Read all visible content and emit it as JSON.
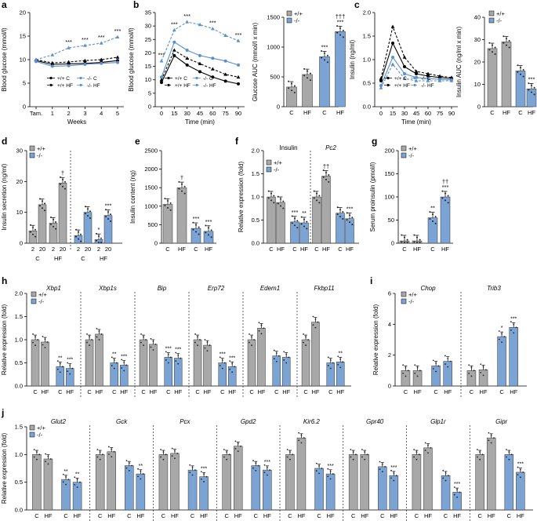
{
  "colors": {
    "gray": "#A8A8A8",
    "blue": "#7BA3D4",
    "line": "#000000",
    "blueLine": "#5B8FCC",
    "hfBlue": "#9DB9E0"
  },
  "legend": {
    "wt": "+/+",
    "ko": "-/-"
  },
  "chart_data": [
    {
      "id": "a",
      "type": "line",
      "title": "",
      "xlabel": "Weeks",
      "ylabel": "Blood glucose (mmol/l)",
      "categories": [
        "Tam.",
        "1",
        "2",
        "3",
        "4",
        "5"
      ],
      "ylim": [
        0,
        20
      ],
      "yticks": [
        "0",
        "5",
        "10",
        "15",
        "20"
      ],
      "legend": [
        "+/+ C",
        "+/+ HF",
        "-/- C",
        "-/- HF"
      ],
      "series": [
        {
          "name": "+/+ C",
          "values": [
            9.8,
            9,
            9.1,
            9.2,
            9.4,
            9.8
          ]
        },
        {
          "name": "+/+ HF",
          "values": [
            10,
            9.3,
            9.5,
            9.8,
            10,
            10.5
          ]
        },
        {
          "name": "-/- C",
          "values": [
            9.6,
            8.6,
            8.7,
            9,
            9.2,
            9.4
          ]
        },
        {
          "name": "-/- HF",
          "values": [
            10,
            11,
            12.5,
            13,
            13.5,
            14.8
          ]
        }
      ],
      "stars": [
        "",
        "",
        "***",
        "***",
        "***",
        "***"
      ]
    },
    {
      "id": "b1",
      "type": "line",
      "xlabel": "Time (min)",
      "ylabel": "Blood glucose (mmol/l)",
      "categories": [
        "0",
        "15",
        "30",
        "45",
        "60",
        "75",
        "90"
      ],
      "ylim": [
        0,
        35
      ],
      "yticks": [
        "0",
        "5",
        "10",
        "15",
        "20",
        "25",
        "30",
        "35"
      ],
      "legend": [
        "+/+ C",
        "+/+ HF",
        "-/- C",
        "-/- HF"
      ],
      "series": [
        {
          "name": "+/+ C",
          "values": [
            9,
            19,
            15.5,
            13,
            11,
            9.5,
            8.5
          ]
        },
        {
          "name": "+/+ HF",
          "values": [
            10,
            21,
            18,
            16,
            14,
            12,
            11
          ]
        },
        {
          "name": "-/- C",
          "values": [
            11,
            24,
            21,
            19,
            18,
            17,
            15.5
          ]
        },
        {
          "name": "-/- HF",
          "values": [
            17,
            28.5,
            31.5,
            30.5,
            29,
            26.5,
            24.5
          ]
        }
      ],
      "stars": [
        "***",
        "***",
        "***",
        "",
        "***",
        "",
        "***"
      ]
    },
    {
      "id": "b2",
      "type": "bar",
      "ylabel": "Glucose AUC (mmol/l x min)",
      "categories": [
        "C",
        "HF",
        "C",
        "HF"
      ],
      "groups": [
        "+/+",
        "+/+",
        "-/-",
        "-/-"
      ],
      "values": [
        330,
        540,
        840,
        1260
      ],
      "ylim": [
        0,
        1500
      ],
      "yticks": [
        "0",
        "500",
        "1000",
        "1500"
      ],
      "stars": [
        "",
        "",
        "***",
        "***"
      ],
      "daggers": [
        "",
        "",
        "",
        "†††"
      ]
    },
    {
      "id": "c1",
      "type": "line",
      "xlabel": "Time (min)",
      "ylabel": "Insulin (ng/ml)",
      "categories": [
        "0",
        "15",
        "30",
        "45",
        "60",
        "75",
        "90"
      ],
      "ylim": [
        0,
        2.0
      ],
      "yticks": [
        "0.0",
        "0.5",
        "1.0",
        "1.5",
        "2.0"
      ],
      "legend": [
        "+/+ C",
        "+/+ HF",
        "-/- C",
        "-/- HF"
      ],
      "series": [
        {
          "name": "+/+ C",
          "values": [
            0.55,
            1.35,
            0.85,
            0.7,
            0.65,
            0.62,
            0.6
          ]
        },
        {
          "name": "+/+ HF",
          "values": [
            0.6,
            1.7,
            1.05,
            0.75,
            0.7,
            0.65,
            0.62
          ]
        },
        {
          "name": "-/- C",
          "values": [
            0.45,
            1.05,
            0.7,
            0.62,
            0.6,
            0.58,
            0.57
          ]
        },
        {
          "name": "-/- HF",
          "values": [
            0.4,
            0.9,
            0.6,
            0.55,
            0.55,
            0.55,
            0.55
          ]
        }
      ],
      "stars": [
        "",
        "",
        "",
        "",
        "",
        "",
        ""
      ]
    },
    {
      "id": "c2",
      "type": "bar",
      "ylabel": "Insulin AUC (ng/ml x min)",
      "categories": [
        "C",
        "HF",
        "C",
        "HF"
      ],
      "groups": [
        "+/+",
        "+/+",
        "-/-",
        "-/-"
      ],
      "values": [
        26,
        29,
        16,
        8
      ],
      "ylim": [
        0,
        40
      ],
      "yticks": [
        "0",
        "10",
        "20",
        "30",
        "40"
      ],
      "stars": [
        "",
        "",
        "",
        "***"
      ]
    },
    {
      "id": "d",
      "type": "bar",
      "ylabel": "Insulin secretion (ng/ml)",
      "categories": [
        "2",
        "20",
        "2",
        "20",
        "2",
        "20",
        "2",
        "20"
      ],
      "groups": [
        "+/+",
        "+/+",
        "+/+",
        "+/+",
        "-/-",
        "-/-",
        "-/-",
        "-/-"
      ],
      "group_labels": [
        "C",
        "HF",
        "C",
        "HF"
      ],
      "values": [
        4,
        12.5,
        6.5,
        19.5,
        2.5,
        10,
        1.2,
        9
      ],
      "ylim": [
        0,
        30
      ],
      "yticks": [
        "0",
        "10",
        "20",
        "30"
      ],
      "stars": [
        "",
        "",
        "",
        "†",
        "",
        "",
        "*",
        "***"
      ]
    },
    {
      "id": "e",
      "type": "bar",
      "ylabel": "Insulin content (ng)",
      "categories": [
        "C",
        "HF",
        "C",
        "HF"
      ],
      "groups": [
        "+/+",
        "+/+",
        "-/-",
        "-/-"
      ],
      "values": [
        1050,
        1500,
        400,
        320
      ],
      "ylim": [
        0,
        2500
      ],
      "yticks": [
        "0",
        "500",
        "1000",
        "1500",
        "2000",
        "2500"
      ],
      "stars": [
        "",
        "†",
        "***",
        "***"
      ]
    },
    {
      "id": "f",
      "type": "bar",
      "ylabel": "Relative expression (fold)",
      "panels": [
        "Insulin",
        "Pc2"
      ],
      "categories": [
        "C",
        "HF",
        "C",
        "HF",
        "C",
        "HF",
        "C",
        "HF"
      ],
      "groups": [
        "+/+",
        "+/+",
        "-/-",
        "-/-",
        "+/+",
        "+/+",
        "-/-",
        "-/-"
      ],
      "values": [
        1.0,
        0.88,
        0.46,
        0.44,
        1.0,
        1.45,
        0.65,
        0.53
      ],
      "ylim": [
        0,
        2.0
      ],
      "yticks": [
        "0.0",
        "0.5",
        "1.0",
        "1.5",
        "2.0"
      ],
      "stars": [
        "",
        "",
        "***",
        "**",
        "",
        "††",
        "",
        "***"
      ]
    },
    {
      "id": "g",
      "type": "bar",
      "ylabel": "Serum proinsulin (pmol/l)",
      "categories": [
        "C",
        "HF",
        "C",
        "HF"
      ],
      "groups": [
        "+/+",
        "+/+",
        "-/-",
        "-/-"
      ],
      "values": [
        5,
        5,
        55,
        100
      ],
      "ylim": [
        0,
        200
      ],
      "yticks": [
        "0",
        "50",
        "100",
        "150",
        "200"
      ],
      "stars": [
        "",
        "",
        "**",
        "***"
      ],
      "daggers": [
        "",
        "",
        "",
        "††"
      ]
    },
    {
      "id": "h",
      "type": "bar",
      "ylabel": "Relative expression (fold)",
      "panels": [
        "Xbp1",
        "Xbp1s",
        "Bip",
        "Erp72",
        "Edem1",
        "Fkbp11"
      ],
      "ylim": [
        0,
        2.0
      ],
      "yticks": [
        "0.0",
        "0.5",
        "1.0",
        "1.5",
        "2.0"
      ],
      "values": [
        [
          1.0,
          0.95,
          0.42,
          0.38
        ],
        [
          1.0,
          1.12,
          0.5,
          0.45
        ],
        [
          1.0,
          0.9,
          0.62,
          0.6
        ],
        [
          1.0,
          0.88,
          0.5,
          0.42
        ],
        [
          1.0,
          1.25,
          0.65,
          0.62
        ],
        [
          1.0,
          1.38,
          0.5,
          0.52
        ]
      ],
      "stars": [
        [
          "",
          "",
          "**",
          "***"
        ],
        [
          "",
          "",
          "**",
          "***"
        ],
        [
          "",
          "",
          "***",
          "***"
        ],
        [
          "",
          "",
          "***",
          "***"
        ],
        [
          "",
          "",
          "",
          ""
        ],
        [
          "",
          "",
          "",
          "**"
        ]
      ]
    },
    {
      "id": "i",
      "type": "bar",
      "ylabel": "Relative expression (fold)",
      "panels": [
        "Chop",
        "Trib3"
      ],
      "ylim": [
        0,
        6
      ],
      "yticks": [
        "0",
        "2",
        "4",
        "6"
      ],
      "values": [
        [
          1.0,
          1.0,
          1.3,
          1.6
        ],
        [
          1.0,
          1.05,
          3.2,
          3.8
        ]
      ],
      "stars": [
        [
          "",
          "",
          "",
          ""
        ],
        [
          "",
          "",
          "*",
          "***"
        ]
      ]
    },
    {
      "id": "j",
      "type": "bar",
      "ylabel": "Relative expression (fold)",
      "panels": [
        "Glut2",
        "Gck",
        "Pcx",
        "Gpd2",
        "Kir6.2",
        "Gpr40",
        "Glp1r",
        "Gipr"
      ],
      "ylim": [
        0,
        1.5
      ],
      "yticks": [
        "0.0",
        "0.5",
        "1.0",
        "1.5"
      ],
      "values": [
        [
          1.0,
          0.92,
          0.55,
          0.5
        ],
        [
          1.0,
          1.05,
          0.8,
          0.65
        ],
        [
          1.0,
          1.02,
          0.72,
          0.6
        ],
        [
          1.0,
          1.15,
          0.8,
          0.72
        ],
        [
          1.0,
          1.3,
          0.75,
          0.65
        ],
        [
          1.0,
          1.0,
          0.78,
          0.62
        ],
        [
          1.0,
          1.12,
          0.62,
          0.32
        ],
        [
          1.0,
          1.3,
          1.0,
          0.68
        ]
      ],
      "stars": [
        [
          "",
          "",
          "**",
          "**"
        ],
        [
          "",
          "",
          "",
          "**"
        ],
        [
          "",
          "",
          "",
          "***"
        ],
        [
          "",
          "",
          "",
          "***"
        ],
        [
          "",
          "",
          "",
          "***"
        ],
        [
          "",
          "",
          "",
          "***"
        ],
        [
          "",
          "",
          "",
          "***"
        ],
        [
          "",
          "",
          "",
          "***"
        ]
      ]
    }
  ],
  "panel_letters": [
    "a",
    "b",
    "c",
    "d",
    "e",
    "f",
    "g",
    "h",
    "i",
    "j"
  ],
  "xlabels": {
    "C": "C",
    "HF": "HF"
  }
}
